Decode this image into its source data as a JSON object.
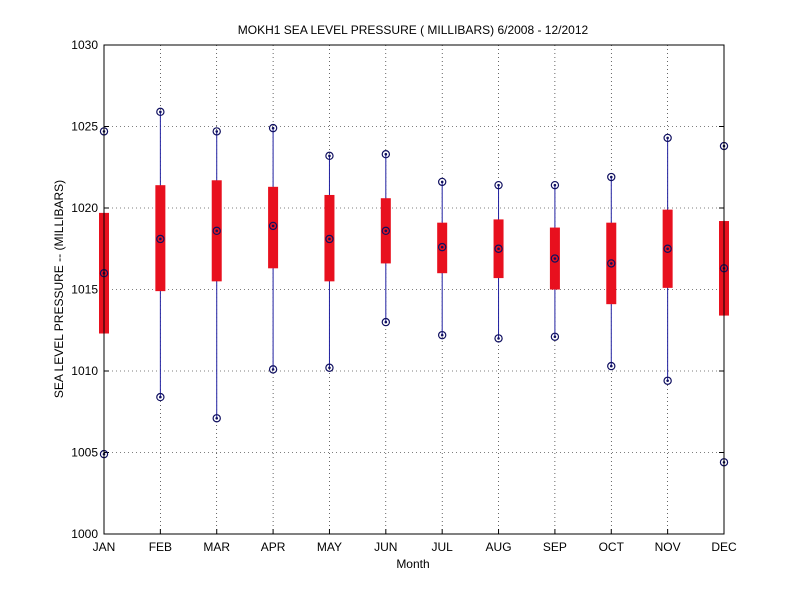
{
  "chart_data": {
    "type": "box",
    "title": "MOKH1  SEA LEVEL PRESSURE ( MILLIBARS) 6/2008 - 12/2012",
    "xlabel": "Month",
    "ylabel": "SEA LEVEL PRESSURE -- (MILLIBARS)",
    "ylim": [
      1000,
      1030
    ],
    "yticks": [
      1000,
      1005,
      1010,
      1015,
      1020,
      1025,
      1030
    ],
    "grid": true,
    "categories": [
      "JAN",
      "FEB",
      "MAR",
      "APR",
      "MAY",
      "JUN",
      "JUL",
      "AUG",
      "SEP",
      "OCT",
      "NOV",
      "DEC"
    ],
    "series": [
      {
        "min": [
          1004.9,
          1008.4,
          1007.1,
          1010.1,
          1010.2,
          1013.0,
          1012.2,
          1012.0,
          1012.1,
          1010.3,
          1009.4,
          1004.4
        ],
        "q1": [
          1012.3,
          1014.9,
          1015.5,
          1016.3,
          1015.5,
          1016.6,
          1016.0,
          1015.7,
          1015.0,
          1014.1,
          1015.1,
          1013.4
        ],
        "median": [
          1016.0,
          1018.1,
          1018.6,
          1018.9,
          1018.1,
          1018.6,
          1017.6,
          1017.5,
          1016.9,
          1016.6,
          1017.5,
          1016.3
        ],
        "q3": [
          1019.7,
          1021.4,
          1021.7,
          1021.3,
          1020.8,
          1020.6,
          1019.1,
          1019.3,
          1018.8,
          1019.1,
          1019.9,
          1019.2
        ],
        "max": [
          1024.7,
          1025.9,
          1024.7,
          1024.9,
          1023.2,
          1023.3,
          1021.6,
          1021.4,
          1021.4,
          1021.9,
          1024.3,
          1023.8
        ]
      }
    ],
    "colors": {
      "box": "#e8101e",
      "whisker": "#1f1fa0",
      "marker": "#101060"
    }
  }
}
